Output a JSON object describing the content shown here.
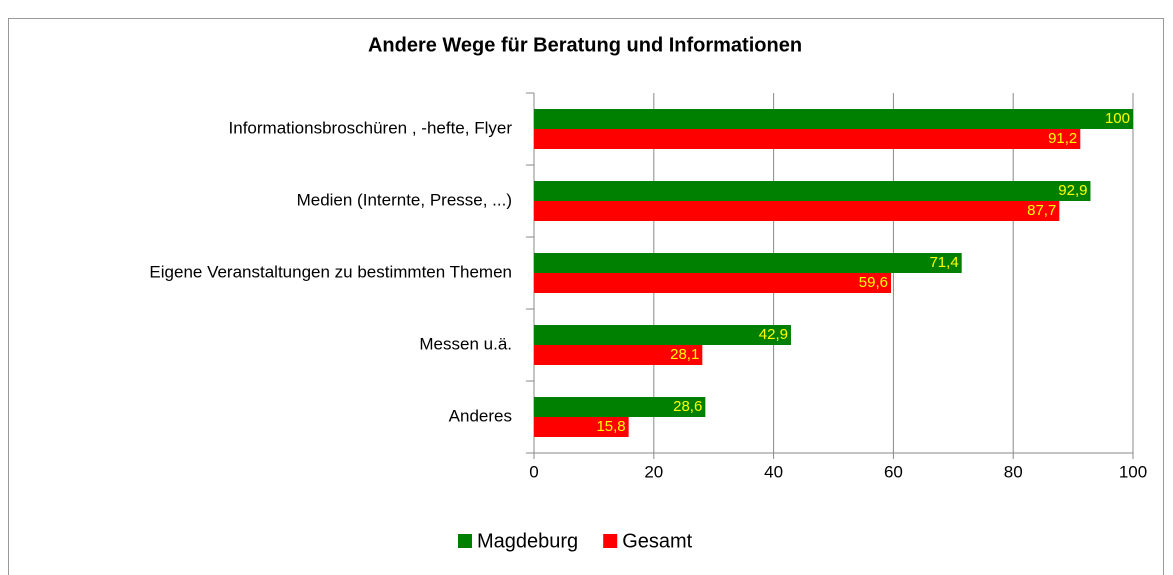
{
  "chart_data": {
    "type": "bar",
    "orientation": "horizontal",
    "title": "Andere Wege für Beratung und Informationen",
    "categories": [
      "Informationsbroschüren , -hefte, Flyer",
      "Medien (Internte, Presse, ...)",
      "Eigene Veranstaltungen zu bestimmten Themen",
      "Messen u.ä.",
      "Anderes"
    ],
    "series": [
      {
        "name": "Magdeburg",
        "color": "#008000",
        "values": [
          100,
          92.9,
          71.4,
          42.9,
          28.6
        ],
        "value_labels": [
          "100",
          "92,9",
          "71,4",
          "42,9",
          "28,6"
        ]
      },
      {
        "name": "Gesamt",
        "color": "#ff0000",
        "values": [
          91.2,
          87.7,
          59.6,
          28.1,
          15.8
        ],
        "value_labels": [
          "91,2",
          "87,7",
          "59,6",
          "28,1",
          "15,8"
        ]
      }
    ],
    "xlim": [
      0,
      100
    ],
    "xticks": [
      0,
      20,
      40,
      60,
      80,
      100
    ],
    "grid": true,
    "legend": "bottom",
    "value_label_color": "#ffff00"
  }
}
